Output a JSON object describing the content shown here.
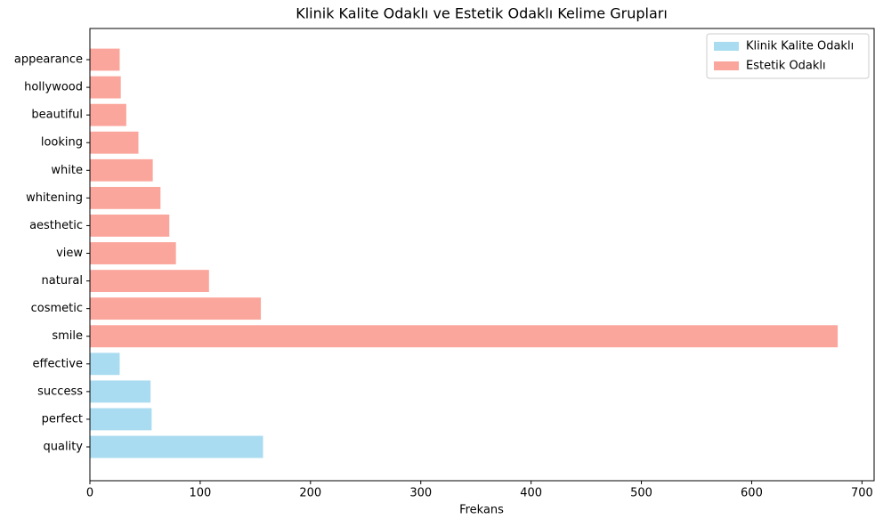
{
  "chart_data": {
    "type": "barh",
    "title": "Klinik Kalite Odaklı ve Estetik Odaklı Kelime Grupları",
    "x_label": "Frekans",
    "categories": [
      "quality",
      "perfect",
      "success",
      "effective",
      "smile",
      "cosmetic",
      "natural",
      "view",
      "aesthetic",
      "whitening",
      "white",
      "looking",
      "beautiful",
      "hollywood",
      "appearance"
    ],
    "series": [
      {
        "name": "Klinik Kalite Odaklı",
        "color": "#a9dcf0",
        "values": [
          157,
          56,
          55,
          27,
          null,
          null,
          null,
          null,
          null,
          null,
          null,
          null,
          null,
          null,
          null
        ]
      },
      {
        "name": "Estetik Odaklı",
        "color": "#fba69c",
        "values": [
          null,
          null,
          null,
          null,
          678,
          155,
          108,
          78,
          72,
          64,
          57,
          44,
          33,
          28,
          27
        ]
      }
    ],
    "xlim": [
      0,
      711
    ],
    "xticks": [
      0,
      100,
      200,
      300,
      400,
      500,
      600,
      700
    ],
    "legend": "upper right"
  }
}
